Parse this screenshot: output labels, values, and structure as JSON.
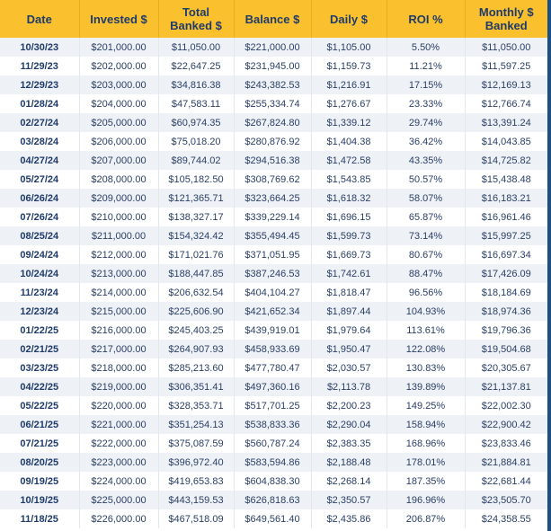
{
  "headers": {
    "date": "Date",
    "invested": "Invested $",
    "total_banked_line1": "Total",
    "total_banked_line2": "Banked $",
    "balance": "Balance $",
    "daily": "Daily $",
    "roi": "ROI %",
    "monthly_banked_line1": "Monthly $",
    "monthly_banked_line2": "Banked"
  },
  "rows": [
    {
      "date": "10/30/23",
      "invested": "$201,000.00",
      "total_banked": "$11,050.00",
      "balance": "$221,000.00",
      "daily": "$1,105.00",
      "roi": "5.50%",
      "monthly_banked": "$11,050.00"
    },
    {
      "date": "11/29/23",
      "invested": "$202,000.00",
      "total_banked": "$22,647.25",
      "balance": "$231,945.00",
      "daily": "$1,159.73",
      "roi": "11.21%",
      "monthly_banked": "$11,597.25"
    },
    {
      "date": "12/29/23",
      "invested": "$203,000.00",
      "total_banked": "$34,816.38",
      "balance": "$243,382.53",
      "daily": "$1,216.91",
      "roi": "17.15%",
      "monthly_banked": "$12,169.13"
    },
    {
      "date": "01/28/24",
      "invested": "$204,000.00",
      "total_banked": "$47,583.11",
      "balance": "$255,334.74",
      "daily": "$1,276.67",
      "roi": "23.33%",
      "monthly_banked": "$12,766.74"
    },
    {
      "date": "02/27/24",
      "invested": "$205,000.00",
      "total_banked": "$60,974.35",
      "balance": "$267,824.80",
      "daily": "$1,339.12",
      "roi": "29.74%",
      "monthly_banked": "$13,391.24"
    },
    {
      "date": "03/28/24",
      "invested": "$206,000.00",
      "total_banked": "$75,018.20",
      "balance": "$280,876.92",
      "daily": "$1,404.38",
      "roi": "36.42%",
      "monthly_banked": "$14,043.85"
    },
    {
      "date": "04/27/24",
      "invested": "$207,000.00",
      "total_banked": "$89,744.02",
      "balance": "$294,516.38",
      "daily": "$1,472.58",
      "roi": "43.35%",
      "monthly_banked": "$14,725.82"
    },
    {
      "date": "05/27/24",
      "invested": "$208,000.00",
      "total_banked": "$105,182.50",
      "balance": "$308,769.62",
      "daily": "$1,543.85",
      "roi": "50.57%",
      "monthly_banked": "$15,438.48"
    },
    {
      "date": "06/26/24",
      "invested": "$209,000.00",
      "total_banked": "$121,365.71",
      "balance": "$323,664.25",
      "daily": "$1,618.32",
      "roi": "58.07%",
      "monthly_banked": "$16,183.21"
    },
    {
      "date": "07/26/24",
      "invested": "$210,000.00",
      "total_banked": "$138,327.17",
      "balance": "$339,229.14",
      "daily": "$1,696.15",
      "roi": "65.87%",
      "monthly_banked": "$16,961.46"
    },
    {
      "date": "08/25/24",
      "invested": "$211,000.00",
      "total_banked": "$154,324.42",
      "balance": "$355,494.45",
      "daily": "$1,599.73",
      "roi": "73.14%",
      "monthly_banked": "$15,997.25"
    },
    {
      "date": "09/24/24",
      "invested": "$212,000.00",
      "total_banked": "$171,021.76",
      "balance": "$371,051.95",
      "daily": "$1,669.73",
      "roi": "80.67%",
      "monthly_banked": "$16,697.34"
    },
    {
      "date": "10/24/24",
      "invested": "$213,000.00",
      "total_banked": "$188,447.85",
      "balance": "$387,246.53",
      "daily": "$1,742.61",
      "roi": "88.47%",
      "monthly_banked": "$17,426.09"
    },
    {
      "date": "11/23/24",
      "invested": "$214,000.00",
      "total_banked": "$206,632.54",
      "balance": "$404,104.27",
      "daily": "$1,818.47",
      "roi": "96.56%",
      "monthly_banked": "$18,184.69"
    },
    {
      "date": "12/23/24",
      "invested": "$215,000.00",
      "total_banked": "$225,606.90",
      "balance": "$421,652.34",
      "daily": "$1,897.44",
      "roi": "104.93%",
      "monthly_banked": "$18,974.36"
    },
    {
      "date": "01/22/25",
      "invested": "$216,000.00",
      "total_banked": "$245,403.25",
      "balance": "$439,919.01",
      "daily": "$1,979.64",
      "roi": "113.61%",
      "monthly_banked": "$19,796.36"
    },
    {
      "date": "02/21/25",
      "invested": "$217,000.00",
      "total_banked": "$264,907.93",
      "balance": "$458,933.69",
      "daily": "$1,950.47",
      "roi": "122.08%",
      "monthly_banked": "$19,504.68"
    },
    {
      "date": "03/23/25",
      "invested": "$218,000.00",
      "total_banked": "$285,213.60",
      "balance": "$477,780.47",
      "daily": "$2,030.57",
      "roi": "130.83%",
      "monthly_banked": "$20,305.67"
    },
    {
      "date": "04/22/25",
      "invested": "$219,000.00",
      "total_banked": "$306,351.41",
      "balance": "$497,360.16",
      "daily": "$2,113.78",
      "roi": "139.89%",
      "monthly_banked": "$21,137.81"
    },
    {
      "date": "05/22/25",
      "invested": "$220,000.00",
      "total_banked": "$328,353.71",
      "balance": "$517,701.25",
      "daily": "$2,200.23",
      "roi": "149.25%",
      "monthly_banked": "$22,002.30"
    },
    {
      "date": "06/21/25",
      "invested": "$221,000.00",
      "total_banked": "$351,254.13",
      "balance": "$538,833.36",
      "daily": "$2,290.04",
      "roi": "158.94%",
      "monthly_banked": "$22,900.42"
    },
    {
      "date": "07/21/25",
      "invested": "$222,000.00",
      "total_banked": "$375,087.59",
      "balance": "$560,787.24",
      "daily": "$2,383.35",
      "roi": "168.96%",
      "monthly_banked": "$23,833.46"
    },
    {
      "date": "08/20/25",
      "invested": "$223,000.00",
      "total_banked": "$396,972.40",
      "balance": "$583,594.86",
      "daily": "$2,188.48",
      "roi": "178.01%",
      "monthly_banked": "$21,884.81"
    },
    {
      "date": "09/19/25",
      "invested": "$224,000.00",
      "total_banked": "$419,653.83",
      "balance": "$604,838.30",
      "daily": "$2,268.14",
      "roi": "187.35%",
      "monthly_banked": "$22,681.44"
    },
    {
      "date": "10/19/25",
      "invested": "$225,000.00",
      "total_banked": "$443,159.53",
      "balance": "$626,818.63",
      "daily": "$2,350.57",
      "roi": "196.96%",
      "monthly_banked": "$23,505.70"
    },
    {
      "date": "11/18/25",
      "invested": "$226,000.00",
      "total_banked": "$467,518.09",
      "balance": "$649,561.40",
      "daily": "$2,435.86",
      "roi": "206.87%",
      "monthly_banked": "$24,358.55"
    }
  ]
}
